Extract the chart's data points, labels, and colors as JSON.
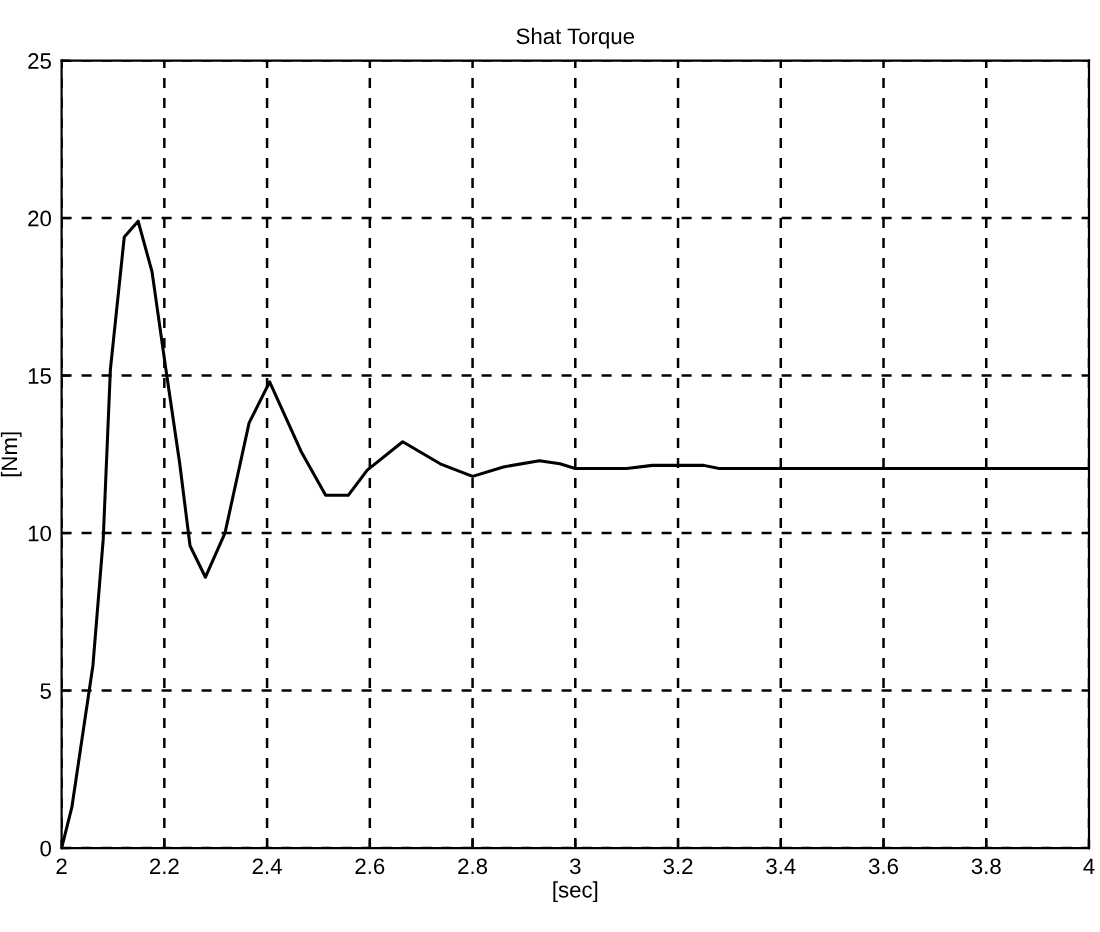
{
  "chart_data": {
    "type": "line",
    "title": "Shat Torque",
    "xlabel": "[sec]",
    "ylabel": "[Nm]",
    "x": [
      2.0,
      2.02,
      2.061,
      2.081,
      2.095,
      2.122,
      2.149,
      2.176,
      2.203,
      2.23,
      2.25,
      2.28,
      2.318,
      2.365,
      2.405,
      2.466,
      2.514,
      2.558,
      2.595,
      2.664,
      2.737,
      2.8,
      2.86,
      2.93,
      2.97,
      3.0,
      3.1,
      3.15,
      3.25,
      3.28,
      4.0
    ],
    "series": [
      {
        "color": "#000000",
        "values": [
          0,
          1.3,
          5.8,
          9.8,
          15.2,
          19.4,
          19.9,
          18.3,
          15.2,
          12.2,
          9.6,
          8.6,
          10.0,
          13.5,
          14.8,
          12.6,
          11.2,
          11.2,
          12.0,
          12.9,
          12.2,
          11.8,
          12.1,
          12.3,
          12.2,
          12.05,
          12.05,
          12.15,
          12.15,
          12.05,
          12.05
        ]
      }
    ],
    "xlim": [
      2,
      4
    ],
    "ylim": [
      0,
      25
    ],
    "xticks": [
      2,
      2.2,
      2.4,
      2.6,
      2.8,
      3,
      3.2,
      3.4,
      3.6,
      3.8,
      4
    ],
    "yticks": [
      0,
      5,
      10,
      15,
      20,
      25
    ],
    "grid": true,
    "line_style": "solid",
    "marker": "none"
  }
}
